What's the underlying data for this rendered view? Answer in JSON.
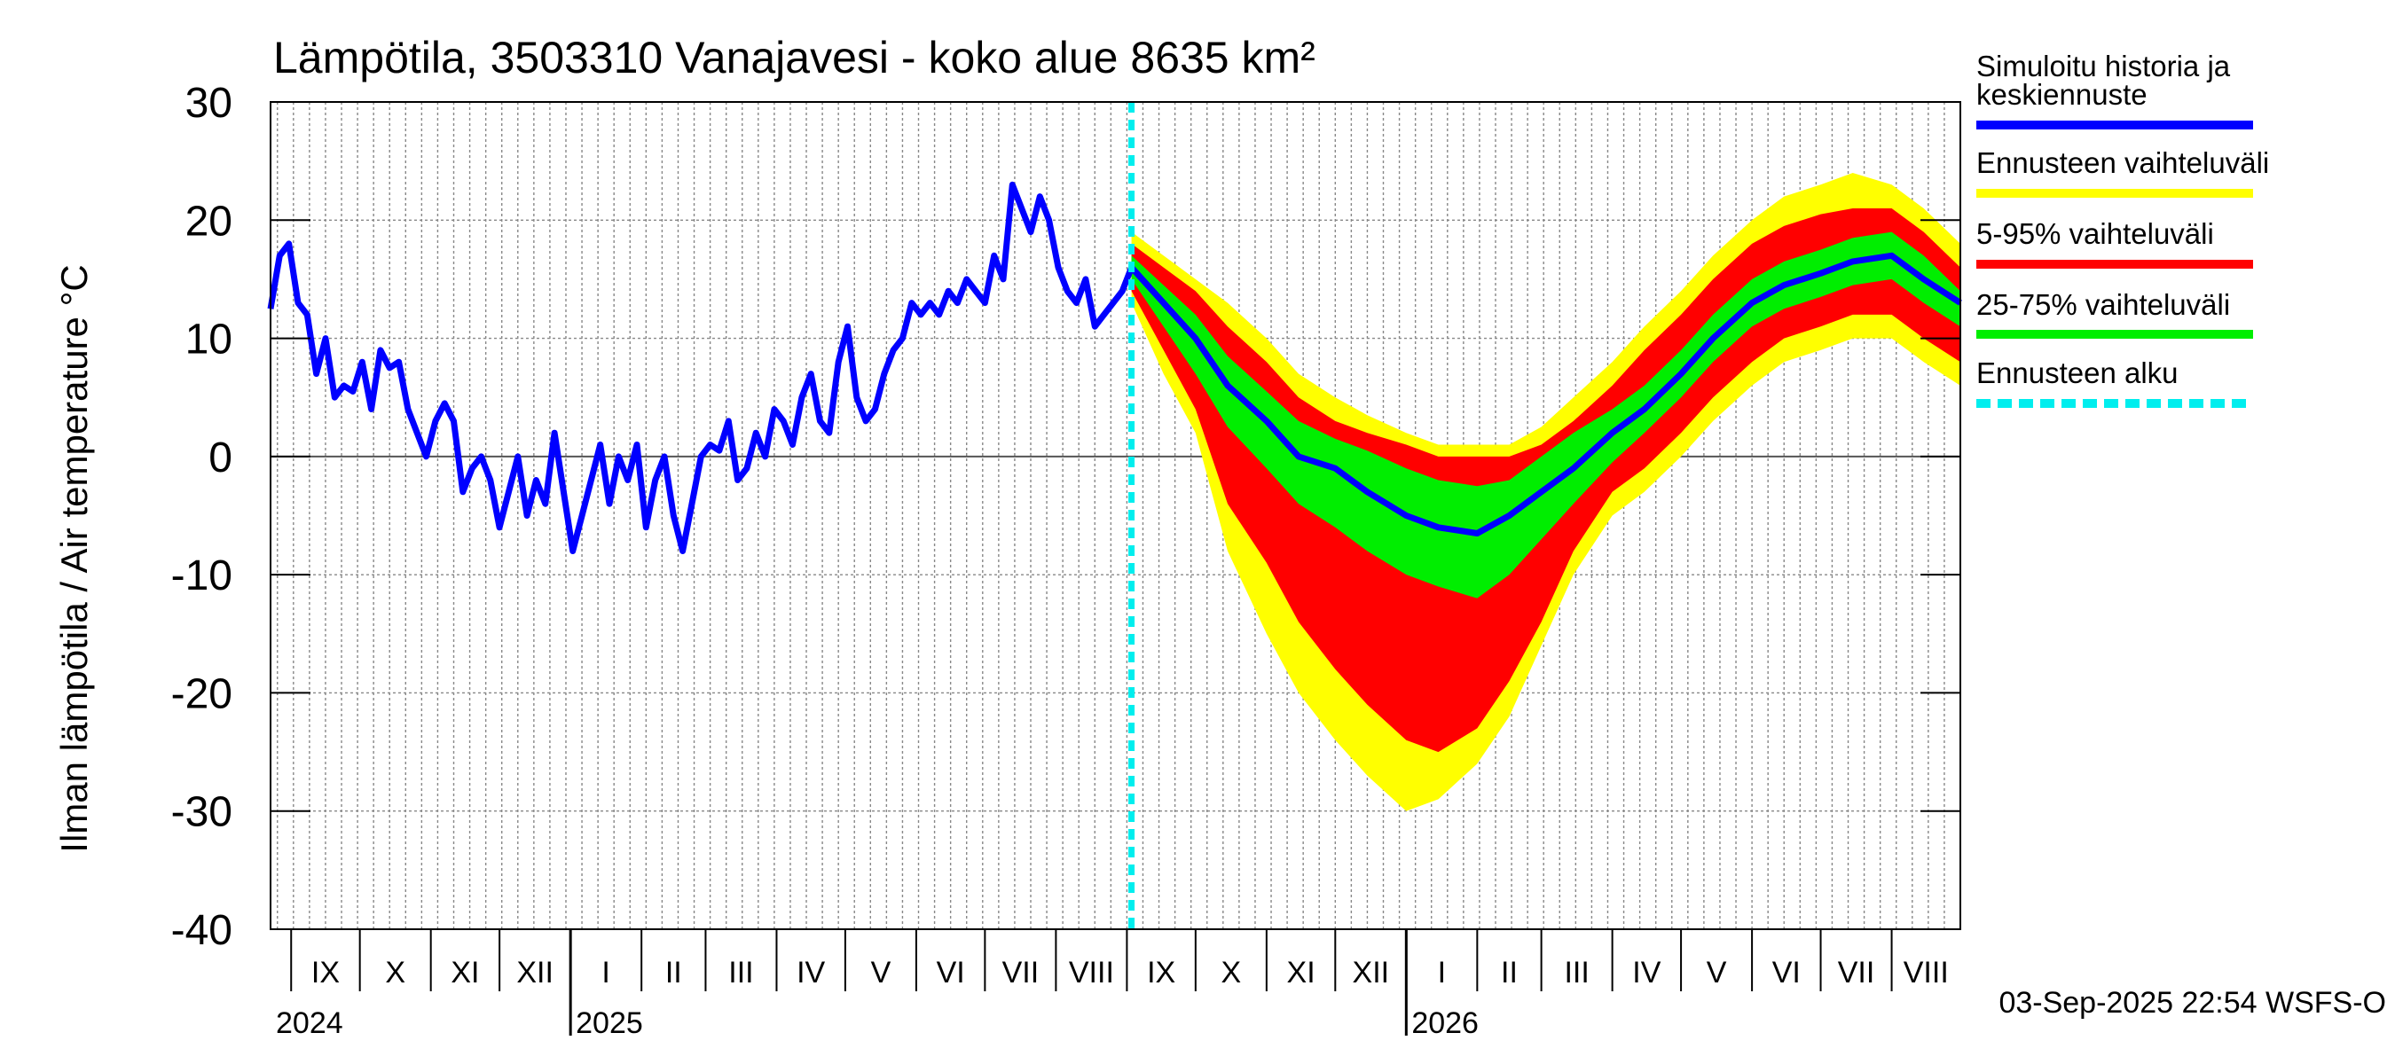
{
  "chart_data": {
    "type": "area",
    "title": "Lämpötila, 3503310 Vanajavesi - koko alue 8635 km²",
    "ylabel": "Ilman lämpötila / Air temperature    °C",
    "ylim": [
      -40,
      30
    ],
    "yticks": [
      30,
      20,
      10,
      0,
      -10,
      -20,
      -30,
      -40
    ],
    "xlim": [
      "2024-08-23",
      "2026-08-31"
    ],
    "months": [
      {
        "label": "IX",
        "start": "2024-09-01"
      },
      {
        "label": "X",
        "start": "2024-10-01"
      },
      {
        "label": "XI",
        "start": "2024-11-01"
      },
      {
        "label": "XII",
        "start": "2024-12-01"
      },
      {
        "label": "I",
        "start": "2025-01-01"
      },
      {
        "label": "II",
        "start": "2025-02-01"
      },
      {
        "label": "III",
        "start": "2025-03-01"
      },
      {
        "label": "IV",
        "start": "2025-04-01"
      },
      {
        "label": "V",
        "start": "2025-05-01"
      },
      {
        "label": "VI",
        "start": "2025-06-01"
      },
      {
        "label": "VII",
        "start": "2025-07-01"
      },
      {
        "label": "VIII",
        "start": "2025-08-01"
      },
      {
        "label": "IX",
        "start": "2025-09-01"
      },
      {
        "label": "X",
        "start": "2025-10-01"
      },
      {
        "label": "XI",
        "start": "2025-11-01"
      },
      {
        "label": "XII",
        "start": "2025-12-01"
      },
      {
        "label": "I",
        "start": "2026-01-01"
      },
      {
        "label": "II",
        "start": "2026-02-01"
      },
      {
        "label": "III",
        "start": "2026-03-01"
      },
      {
        "label": "IV",
        "start": "2026-04-01"
      },
      {
        "label": "V",
        "start": "2026-05-01"
      },
      {
        "label": "VI",
        "start": "2026-06-01"
      },
      {
        "label": "VII",
        "start": "2026-07-01"
      },
      {
        "label": "VIII",
        "start": "2026-08-01"
      }
    ],
    "years": [
      {
        "label": "2024",
        "at": "2024-08-23"
      },
      {
        "label": "2025",
        "at": "2025-01-01"
      },
      {
        "label": "2026",
        "at": "2026-01-01"
      }
    ],
    "forecast_start": "2025-09-03",
    "history": {
      "name": "Simuloitu historia ja keskiennuste",
      "points": [
        [
          "2024-08-23",
          12.5
        ],
        [
          "2024-08-27",
          17
        ],
        [
          "2024-08-31",
          18
        ],
        [
          "2024-09-04",
          13
        ],
        [
          "2024-09-08",
          12
        ],
        [
          "2024-09-12",
          7
        ],
        [
          "2024-09-16",
          10
        ],
        [
          "2024-09-20",
          5
        ],
        [
          "2024-09-24",
          6
        ],
        [
          "2024-09-28",
          5.5
        ],
        [
          "2024-10-02",
          8
        ],
        [
          "2024-10-06",
          4
        ],
        [
          "2024-10-10",
          9
        ],
        [
          "2024-10-14",
          7.5
        ],
        [
          "2024-10-18",
          8
        ],
        [
          "2024-10-22",
          4
        ],
        [
          "2024-10-26",
          2
        ],
        [
          "2024-10-30",
          0
        ],
        [
          "2024-11-03",
          3
        ],
        [
          "2024-11-07",
          4.5
        ],
        [
          "2024-11-11",
          3
        ],
        [
          "2024-11-15",
          -3
        ],
        [
          "2024-11-19",
          -1
        ],
        [
          "2024-11-23",
          0
        ],
        [
          "2024-11-27",
          -2
        ],
        [
          "2024-12-01",
          -6
        ],
        [
          "2024-12-05",
          -3
        ],
        [
          "2024-12-09",
          0
        ],
        [
          "2024-12-13",
          -5
        ],
        [
          "2024-12-17",
          -2
        ],
        [
          "2024-12-21",
          -4
        ],
        [
          "2024-12-25",
          2
        ],
        [
          "2024-12-29",
          -3
        ],
        [
          "2025-01-02",
          -8
        ],
        [
          "2025-01-06",
          -5
        ],
        [
          "2025-01-10",
          -2
        ],
        [
          "2025-01-14",
          1
        ],
        [
          "2025-01-18",
          -4
        ],
        [
          "2025-01-22",
          0
        ],
        [
          "2025-01-26",
          -2
        ],
        [
          "2025-01-30",
          1
        ],
        [
          "2025-02-03",
          -6
        ],
        [
          "2025-02-07",
          -2
        ],
        [
          "2025-02-11",
          0
        ],
        [
          "2025-02-15",
          -5
        ],
        [
          "2025-02-19",
          -8
        ],
        [
          "2025-02-23",
          -4
        ],
        [
          "2025-02-27",
          0
        ],
        [
          "2025-03-03",
          1
        ],
        [
          "2025-03-07",
          0.5
        ],
        [
          "2025-03-11",
          3
        ],
        [
          "2025-03-15",
          -2
        ],
        [
          "2025-03-19",
          -1
        ],
        [
          "2025-03-23",
          2
        ],
        [
          "2025-03-27",
          0
        ],
        [
          "2025-03-31",
          4
        ],
        [
          "2025-04-04",
          3
        ],
        [
          "2025-04-08",
          1
        ],
        [
          "2025-04-12",
          5
        ],
        [
          "2025-04-16",
          7
        ],
        [
          "2025-04-20",
          3
        ],
        [
          "2025-04-24",
          2
        ],
        [
          "2025-04-28",
          8
        ],
        [
          "2025-05-02",
          11
        ],
        [
          "2025-05-06",
          5
        ],
        [
          "2025-05-10",
          3
        ],
        [
          "2025-05-14",
          4
        ],
        [
          "2025-05-18",
          7
        ],
        [
          "2025-05-22",
          9
        ],
        [
          "2025-05-26",
          10
        ],
        [
          "2025-05-30",
          13
        ],
        [
          "2025-06-03",
          12
        ],
        [
          "2025-06-07",
          13
        ],
        [
          "2025-06-11",
          12
        ],
        [
          "2025-06-15",
          14
        ],
        [
          "2025-06-19",
          13
        ],
        [
          "2025-06-23",
          15
        ],
        [
          "2025-06-27",
          14
        ],
        [
          "2025-07-01",
          13
        ],
        [
          "2025-07-05",
          17
        ],
        [
          "2025-07-09",
          15
        ],
        [
          "2025-07-13",
          23
        ],
        [
          "2025-07-17",
          21
        ],
        [
          "2025-07-21",
          19
        ],
        [
          "2025-07-25",
          22
        ],
        [
          "2025-07-29",
          20
        ],
        [
          "2025-08-02",
          16
        ],
        [
          "2025-08-06",
          14
        ],
        [
          "2025-08-10",
          13
        ],
        [
          "2025-08-14",
          15
        ],
        [
          "2025-08-18",
          11
        ],
        [
          "2025-08-22",
          12
        ],
        [
          "2025-08-26",
          13
        ],
        [
          "2025-08-30",
          14
        ],
        [
          "2025-09-03",
          16
        ]
      ]
    },
    "forecast": {
      "dates": [
        "2025-09-03",
        "2025-09-17",
        "2025-10-01",
        "2025-10-15",
        "2025-11-01",
        "2025-11-15",
        "2025-12-01",
        "2025-12-15",
        "2026-01-01",
        "2026-01-15",
        "2026-02-01",
        "2026-02-15",
        "2026-03-01",
        "2026-03-15",
        "2026-04-01",
        "2026-04-15",
        "2026-05-01",
        "2026-05-15",
        "2026-06-01",
        "2026-06-15",
        "2026-07-01",
        "2026-07-15",
        "2026-08-01",
        "2026-08-15",
        "2026-08-31"
      ],
      "median": [
        16,
        13,
        10,
        6,
        3,
        0,
        -1,
        -3,
        -5,
        -6,
        -6.5,
        -5,
        -3,
        -1,
        2,
        4,
        7,
        10,
        13,
        14.5,
        15.5,
        16.5,
        17,
        15,
        13
      ],
      "p25": [
        15,
        11,
        7,
        2.5,
        -1,
        -4,
        -6,
        -8,
        -10,
        -11,
        -12,
        -10,
        -7,
        -4,
        -0.5,
        2,
        5,
        8,
        11,
        12.5,
        13.5,
        14.5,
        15,
        13,
        11
      ],
      "p75": [
        17,
        14.5,
        12,
        8.5,
        5.5,
        3,
        1.5,
        0.5,
        -1,
        -2,
        -2.5,
        -2,
        0,
        2,
        4,
        6,
        9,
        12,
        15,
        16.5,
        17.5,
        18.5,
        19,
        17,
        14
      ],
      "p5": [
        14,
        9,
        4,
        -4,
        -9,
        -14,
        -18,
        -21,
        -24,
        -25,
        -23,
        -19,
        -14,
        -8,
        -3,
        -1,
        2,
        5,
        8,
        10,
        11,
        12,
        12,
        10,
        8
      ],
      "p95": [
        18,
        16,
        14,
        11,
        8,
        5,
        3,
        2,
        1,
        0,
        0,
        0,
        1,
        3,
        6,
        9,
        12,
        15,
        18,
        19.5,
        20.5,
        21,
        21,
        19,
        16
      ],
      "min": [
        13,
        7,
        2,
        -8,
        -15,
        -20,
        -24,
        -27,
        -30,
        -29,
        -26,
        -22,
        -16,
        -10,
        -5,
        -3,
        0,
        3,
        6,
        8,
        9,
        10,
        10,
        8,
        6
      ],
      "max": [
        19,
        17,
        15,
        13,
        10,
        7,
        5,
        3.5,
        2,
        1,
        1,
        1,
        2.5,
        5,
        8,
        11,
        14,
        17,
        20,
        22,
        23,
        24,
        23,
        21,
        18
      ]
    },
    "legend": [
      {
        "label": "Simuloitu historia ja\nkeskiennuste",
        "color": "#0000ff",
        "style": "solid"
      },
      {
        "label": "Ennusteen vaihteluväli",
        "color": "#ffff00",
        "style": "solid"
      },
      {
        "label": "5-95% vaihteluväli",
        "color": "#ff0000",
        "style": "solid"
      },
      {
        "label": "25-75% vaihteluväli",
        "color": "#00ee00",
        "style": "solid"
      },
      {
        "label": "Ennusteen alku",
        "color": "#00eeee",
        "style": "dashed"
      }
    ],
    "legend_position": "right",
    "grid": true,
    "timestamp": "03-Sep-2025 22:54 WSFS-O",
    "colors": {
      "history": "#0000ff",
      "range": "#ffff00",
      "p5_95": "#ff0000",
      "p25_75": "#00ee00",
      "forecast_start": "#00eeee",
      "grid": "#888888",
      "zero_line": "#555555"
    }
  }
}
